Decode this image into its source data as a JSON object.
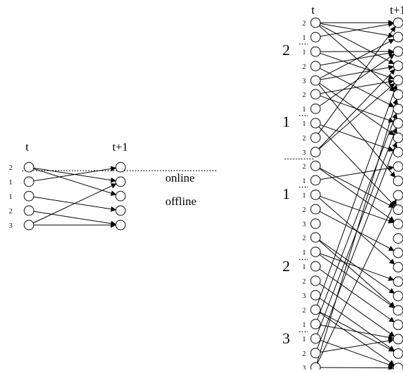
{
  "left_diagram": {
    "t_label": "t",
    "t1_label": "t+1",
    "online_label": "online",
    "offline_label": "offline",
    "left_node_labels": [
      "2",
      "1",
      "1",
      "2",
      "3"
    ],
    "edges": [
      [
        0,
        1
      ],
      [
        0,
        2
      ],
      [
        1,
        0
      ],
      [
        2,
        3
      ],
      [
        3,
        4
      ],
      [
        4,
        1
      ],
      [
        4,
        4
      ]
    ]
  },
  "right_diagram": {
    "t_label": "t",
    "t1_label": "t+1",
    "top_section": {
      "group_labels": [
        "2",
        "1"
      ],
      "node_labels": [
        "2",
        "1",
        "1",
        "2",
        "3",
        "2",
        "1",
        "1",
        "2",
        "3"
      ]
    },
    "bottom_section": {
      "group_labels": [
        "1",
        "2",
        "3"
      ],
      "node_labels": [
        "2",
        "1",
        "1",
        "2",
        "3",
        "2",
        "1",
        "1",
        "2",
        "3",
        "2",
        "1",
        "1",
        "2",
        "3"
      ]
    },
    "edges": [
      [
        0,
        0
      ],
      [
        0,
        1
      ],
      [
        0,
        3
      ],
      [
        0,
        5
      ],
      [
        1,
        0
      ],
      [
        2,
        2
      ],
      [
        2,
        4
      ],
      [
        3,
        6
      ],
      [
        3,
        2
      ],
      [
        4,
        1
      ],
      [
        4,
        3
      ],
      [
        4,
        8
      ],
      [
        4,
        11
      ],
      [
        5,
        4
      ],
      [
        5,
        7
      ],
      [
        6,
        2
      ],
      [
        7,
        9
      ],
      [
        7,
        13
      ],
      [
        8,
        0
      ],
      [
        9,
        3
      ],
      [
        9,
        4
      ],
      [
        10,
        13
      ],
      [
        10,
        14
      ],
      [
        11,
        10
      ],
      [
        12,
        14
      ],
      [
        12,
        17
      ],
      [
        13,
        16
      ],
      [
        15,
        19
      ],
      [
        15,
        20
      ],
      [
        16,
        18
      ],
      [
        16,
        20
      ],
      [
        17,
        21
      ],
      [
        18,
        22
      ],
      [
        19,
        23
      ],
      [
        20,
        4
      ],
      [
        20,
        23
      ],
      [
        20,
        24
      ],
      [
        21,
        22
      ],
      [
        21,
        6
      ],
      [
        22,
        7
      ],
      [
        22,
        24
      ],
      [
        23,
        8
      ],
      [
        23,
        22
      ],
      [
        24,
        5
      ],
      [
        24,
        12
      ],
      [
        24,
        24
      ]
    ]
  }
}
